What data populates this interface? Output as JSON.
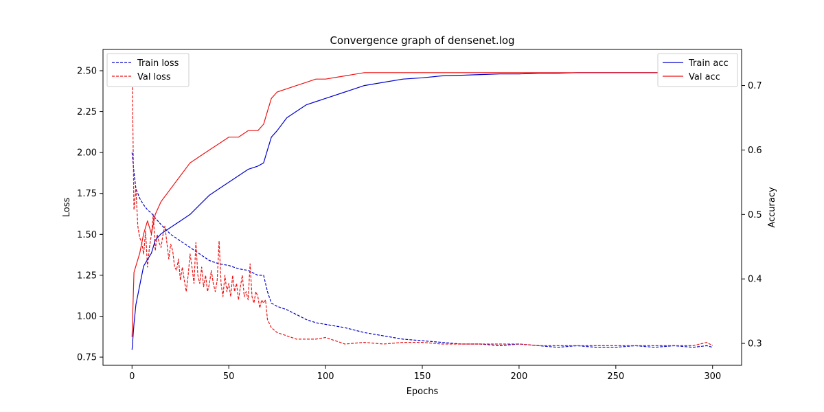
{
  "chart_data": {
    "type": "line",
    "title": "Convergence graph of densenet.log",
    "xlabel": "Epochs",
    "ylabel_left": "Loss",
    "ylabel_right": "Accuracy",
    "xlim": [
      -15,
      315
    ],
    "ylim_left": [
      0.7,
      2.63
    ],
    "ylim_right": [
      0.266,
      0.756
    ],
    "x_ticks": [
      0,
      50,
      100,
      150,
      200,
      250,
      300
    ],
    "y_ticks_left": [
      0.75,
      1.0,
      1.25,
      1.5,
      1.75,
      2.0,
      2.25,
      2.5
    ],
    "y_ticks_right": [
      0.3,
      0.4,
      0.5,
      0.6,
      0.7
    ],
    "legend_left": {
      "placement": "top-left",
      "entries": [
        "Train loss",
        "Val loss"
      ]
    },
    "legend_right": {
      "placement": "top-right",
      "entries": [
        "Train acc",
        "Val acc"
      ]
    },
    "colors": {
      "train": "#0000cc",
      "val": "#ee1111"
    },
    "series": [
      {
        "name": "Train loss",
        "axis": "left",
        "style": "dashed",
        "x": [
          0,
          1,
          2,
          4,
          6,
          8,
          10,
          12,
          15,
          20,
          25,
          30,
          35,
          40,
          45,
          50,
          55,
          60,
          65,
          68,
          70,
          72,
          75,
          80,
          85,
          90,
          95,
          100,
          110,
          120,
          130,
          140,
          150,
          160,
          170,
          180,
          190,
          200,
          210,
          220,
          230,
          240,
          250,
          260,
          270,
          280,
          290,
          297,
          300
        ],
        "y": [
          2.0,
          1.88,
          1.78,
          1.72,
          1.68,
          1.65,
          1.63,
          1.6,
          1.56,
          1.5,
          1.46,
          1.42,
          1.38,
          1.34,
          1.32,
          1.31,
          1.29,
          1.28,
          1.25,
          1.25,
          1.15,
          1.08,
          1.06,
          1.04,
          1.01,
          0.98,
          0.96,
          0.95,
          0.93,
          0.9,
          0.88,
          0.86,
          0.85,
          0.84,
          0.83,
          0.83,
          0.82,
          0.83,
          0.82,
          0.81,
          0.82,
          0.81,
          0.81,
          0.82,
          0.81,
          0.82,
          0.81,
          0.82,
          0.81
        ]
      },
      {
        "name": "Val loss",
        "axis": "left",
        "style": "dashed",
        "x": [
          0,
          1,
          2,
          3,
          4,
          5,
          6,
          7,
          8,
          9,
          10,
          11,
          12,
          13,
          14,
          15,
          16,
          17,
          18,
          19,
          20,
          21,
          22,
          23,
          24,
          25,
          26,
          27,
          28,
          29,
          30,
          31,
          32,
          33,
          34,
          35,
          36,
          37,
          38,
          39,
          40,
          41,
          42,
          43,
          44,
          45,
          46,
          47,
          48,
          49,
          50,
          51,
          52,
          53,
          54,
          55,
          56,
          57,
          58,
          59,
          60,
          61,
          62,
          63,
          64,
          65,
          66,
          67,
          68,
          69,
          70,
          72,
          75,
          80,
          85,
          90,
          95,
          100,
          105,
          110,
          120,
          130,
          140,
          150,
          160,
          170,
          180,
          190,
          200,
          210,
          220,
          230,
          240,
          250,
          260,
          270,
          280,
          290,
          297,
          300
        ],
        "y": [
          2.55,
          1.65,
          1.78,
          1.55,
          1.48,
          1.45,
          1.38,
          1.52,
          1.3,
          1.42,
          1.5,
          1.62,
          1.4,
          1.5,
          1.45,
          1.42,
          1.5,
          1.55,
          1.45,
          1.35,
          1.44,
          1.4,
          1.3,
          1.28,
          1.35,
          1.22,
          1.3,
          1.22,
          1.15,
          1.25,
          1.38,
          1.3,
          1.2,
          1.45,
          1.25,
          1.2,
          1.3,
          1.18,
          1.25,
          1.15,
          1.2,
          1.28,
          1.2,
          1.15,
          1.22,
          1.46,
          1.2,
          1.12,
          1.25,
          1.15,
          1.2,
          1.12,
          1.25,
          1.15,
          1.2,
          1.1,
          1.18,
          1.25,
          1.12,
          1.15,
          1.1,
          1.32,
          1.12,
          1.08,
          1.15,
          1.12,
          1.05,
          1.1,
          1.08,
          1.1,
          0.98,
          0.93,
          0.9,
          0.88,
          0.86,
          0.86,
          0.86,
          0.87,
          0.85,
          0.83,
          0.84,
          0.83,
          0.84,
          0.84,
          0.83,
          0.83,
          0.83,
          0.83,
          0.83,
          0.82,
          0.82,
          0.82,
          0.82,
          0.82,
          0.82,
          0.82,
          0.82,
          0.82,
          0.84,
          0.82
        ]
      },
      {
        "name": "Train acc",
        "axis": "right",
        "style": "solid",
        "x": [
          0,
          1,
          2,
          4,
          6,
          8,
          10,
          12,
          15,
          20,
          25,
          30,
          35,
          40,
          45,
          50,
          55,
          60,
          65,
          68,
          70,
          72,
          75,
          80,
          85,
          90,
          95,
          100,
          110,
          120,
          130,
          140,
          150,
          160,
          170,
          180,
          190,
          200,
          210,
          220,
          230,
          240,
          250,
          260,
          270,
          280,
          290,
          297,
          300
        ],
        "y": [
          0.29,
          0.33,
          0.36,
          0.39,
          0.42,
          0.43,
          0.44,
          0.46,
          0.47,
          0.48,
          0.49,
          0.5,
          0.515,
          0.53,
          0.54,
          0.55,
          0.56,
          0.57,
          0.575,
          0.58,
          0.6,
          0.62,
          0.63,
          0.65,
          0.66,
          0.67,
          0.675,
          0.68,
          0.69,
          0.7,
          0.705,
          0.71,
          0.712,
          0.715,
          0.716,
          0.717,
          0.718,
          0.718,
          0.719,
          0.719,
          0.72,
          0.72,
          0.72,
          0.72,
          0.72,
          0.72,
          0.72,
          0.72,
          0.72
        ]
      },
      {
        "name": "Val acc",
        "axis": "right",
        "style": "solid",
        "x": [
          0,
          1,
          2,
          4,
          6,
          8,
          10,
          12,
          15,
          20,
          25,
          30,
          35,
          40,
          45,
          50,
          55,
          60,
          65,
          68,
          70,
          72,
          75,
          80,
          85,
          90,
          95,
          100,
          110,
          120,
          130,
          140,
          150,
          160,
          170,
          180,
          190,
          200,
          210,
          220,
          230,
          240,
          250,
          260,
          270,
          280,
          290,
          297,
          300
        ],
        "y": [
          0.31,
          0.41,
          0.42,
          0.44,
          0.47,
          0.49,
          0.47,
          0.5,
          0.52,
          0.54,
          0.56,
          0.58,
          0.59,
          0.6,
          0.61,
          0.62,
          0.62,
          0.63,
          0.63,
          0.64,
          0.66,
          0.68,
          0.69,
          0.695,
          0.7,
          0.705,
          0.71,
          0.71,
          0.715,
          0.72,
          0.72,
          0.72,
          0.72,
          0.72,
          0.72,
          0.72,
          0.72,
          0.72,
          0.72,
          0.72,
          0.72,
          0.72,
          0.72,
          0.72,
          0.72,
          0.72,
          0.72,
          0.72,
          0.72
        ]
      }
    ]
  }
}
